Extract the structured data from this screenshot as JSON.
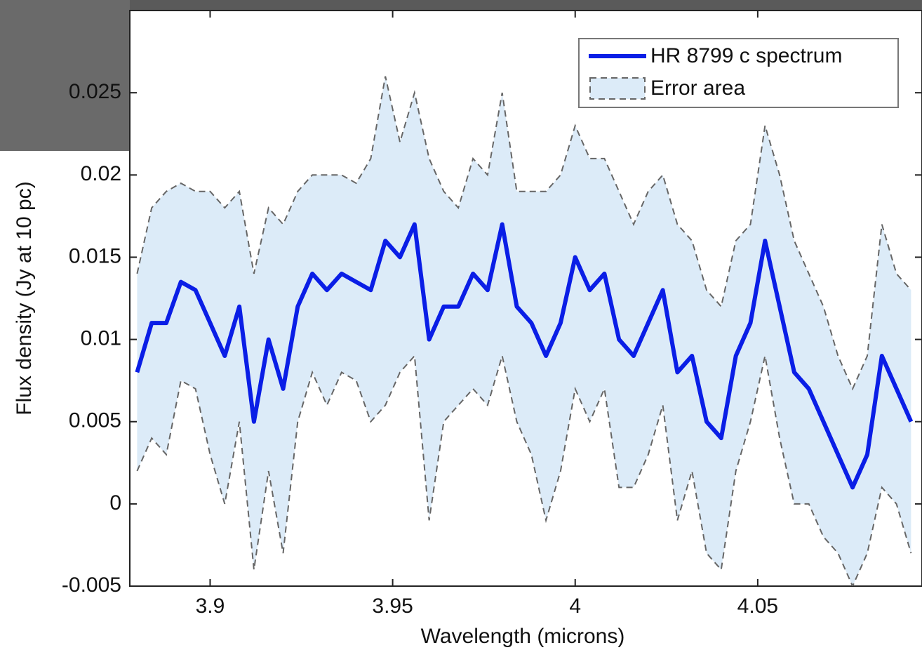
{
  "chart_data": {
    "type": "line",
    "xlabel": "Wavelength (microns)",
    "ylabel": "Flux density (Jy at 10 pc)",
    "xlim": [
      3.878,
      4.095
    ],
    "xticks": [
      3.9,
      3.95,
      4,
      4.05
    ],
    "ylim": [
      -0.005,
      0.03
    ],
    "yticks": [
      -0.005,
      0,
      0.005,
      0.01,
      0.015,
      0.02,
      0.025
    ],
    "legend": "upper right",
    "x": [
      3.88,
      3.884,
      3.888,
      3.892,
      3.896,
      3.9,
      3.904,
      3.908,
      3.912,
      3.916,
      3.92,
      3.924,
      3.928,
      3.932,
      3.936,
      3.94,
      3.944,
      3.948,
      3.952,
      3.956,
      3.96,
      3.964,
      3.968,
      3.972,
      3.976,
      3.98,
      3.984,
      3.988,
      3.992,
      3.996,
      4.0,
      4.004,
      4.008,
      4.012,
      4.016,
      4.02,
      4.024,
      4.028,
      4.032,
      4.036,
      4.04,
      4.044,
      4.048,
      4.052,
      4.056,
      4.06,
      4.064,
      4.068,
      4.072,
      4.076,
      4.08,
      4.084,
      4.088,
      4.092
    ],
    "series": [
      {
        "name": "HR 8799 c spectrum",
        "color": "#0a1ee6",
        "values": [
          0.008,
          0.011,
          0.011,
          0.0135,
          0.013,
          0.011,
          0.009,
          0.012,
          0.005,
          0.01,
          0.007,
          0.012,
          0.014,
          0.013,
          0.014,
          0.0135,
          0.013,
          0.016,
          0.015,
          0.017,
          0.01,
          0.012,
          0.012,
          0.014,
          0.013,
          0.017,
          0.012,
          0.011,
          0.009,
          0.011,
          0.015,
          0.013,
          0.014,
          0.01,
          0.009,
          0.011,
          0.013,
          0.008,
          0.009,
          0.005,
          0.004,
          0.009,
          0.011,
          0.016,
          0.012,
          0.008,
          0.007,
          0.005,
          0.003,
          0.001,
          0.003,
          0.009,
          0.007,
          0.005
        ]
      }
    ],
    "error_band": {
      "name": "Error area",
      "color": "#dcebf8",
      "edge_color": "#666666",
      "upper": [
        0.014,
        0.018,
        0.019,
        0.0195,
        0.019,
        0.019,
        0.018,
        0.019,
        0.014,
        0.018,
        0.017,
        0.019,
        0.02,
        0.02,
        0.02,
        0.0195,
        0.021,
        0.026,
        0.022,
        0.025,
        0.021,
        0.019,
        0.018,
        0.021,
        0.02,
        0.025,
        0.019,
        0.019,
        0.019,
        0.02,
        0.023,
        0.021,
        0.021,
        0.019,
        0.017,
        0.019,
        0.02,
        0.017,
        0.016,
        0.013,
        0.012,
        0.016,
        0.017,
        0.023,
        0.02,
        0.016,
        0.014,
        0.012,
        0.009,
        0.007,
        0.009,
        0.017,
        0.014,
        0.013
      ],
      "lower": [
        0.002,
        0.004,
        0.003,
        0.0075,
        0.007,
        0.003,
        0,
        0.005,
        -0.004,
        0.002,
        -0.003,
        0.005,
        0.008,
        0.006,
        0.008,
        0.0075,
        0.005,
        0.006,
        0.008,
        0.009,
        -0.001,
        0.005,
        0.006,
        0.007,
        0.006,
        0.009,
        0.005,
        0.003,
        -0.001,
        0.002,
        0.007,
        0.005,
        0.007,
        0.001,
        0.001,
        0.003,
        0.006,
        -0.001,
        0.002,
        -0.003,
        -0.004,
        0.002,
        0.005,
        0.009,
        0.004,
        0,
        0,
        -0.002,
        -0.003,
        -0.005,
        -0.003,
        0.001,
        0,
        -0.003
      ]
    }
  }
}
